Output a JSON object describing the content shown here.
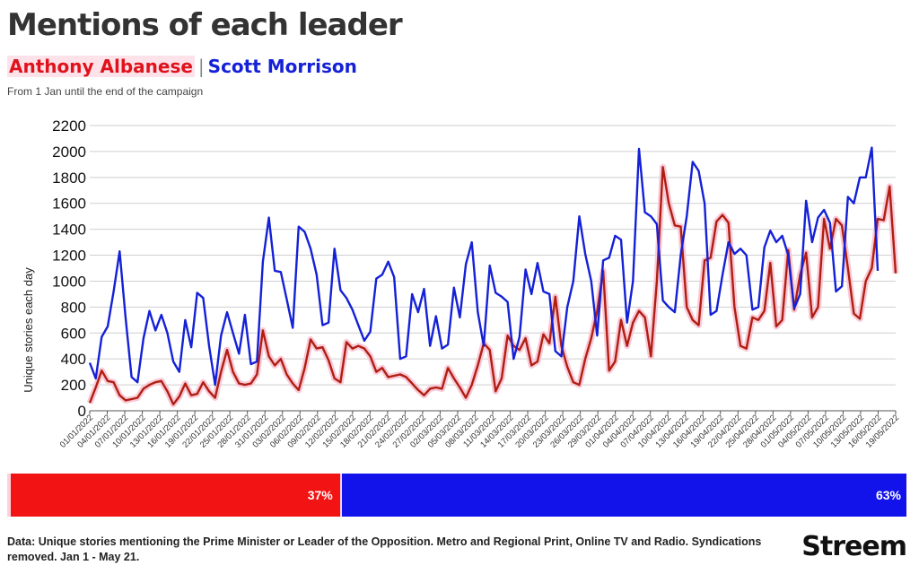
{
  "header": {
    "title": "Mentions of each leader",
    "subtitle": "From 1 Jan until the end of the campaign"
  },
  "legend": {
    "separator": "|"
  },
  "chart_data": {
    "type": "line",
    "ylabel": "Unique stories each day",
    "xlabel": "",
    "ylim": [
      0,
      2200
    ],
    "yticks": [
      0,
      200,
      400,
      600,
      800,
      1000,
      1200,
      1400,
      1600,
      1800,
      2000,
      2200
    ],
    "grid": true,
    "x_tick_labels": [
      "01/01/2022",
      "04/01/2022",
      "07/01/2022",
      "10/01/2022",
      "13/01/2022",
      "16/01/2022",
      "19/01/2022",
      "22/01/2022",
      "25/01/2022",
      "28/01/2022",
      "31/01/2022",
      "03/02/2022",
      "06/02/2022",
      "09/02/2022",
      "12/02/2022",
      "15/02/2022",
      "18/02/2022",
      "21/02/2022",
      "24/02/2022",
      "27/02/2022",
      "02/03/2022",
      "05/03/2022",
      "08/03/2022",
      "11/03/2022",
      "14/03/2022",
      "17/03/2022",
      "20/03/2022",
      "23/03/2022",
      "26/03/2022",
      "29/03/2022",
      "01/04/2022",
      "04/04/2022",
      "07/04/2022",
      "10/04/2022",
      "13/04/2022",
      "16/04/2022",
      "19/04/2022",
      "22/04/2022",
      "25/04/2022",
      "28/04/2022",
      "01/05/2022",
      "04/05/2022",
      "07/05/2022",
      "10/05/2022",
      "13/05/2022",
      "16/05/2022",
      "19/05/2022"
    ],
    "series": [
      {
        "name": "Anthony Albanese",
        "color": "#b01e12",
        "values": [
          60,
          180,
          310,
          230,
          220,
          120,
          80,
          90,
          100,
          170,
          200,
          220,
          230,
          150,
          50,
          110,
          210,
          120,
          130,
          220,
          150,
          100,
          300,
          470,
          300,
          210,
          200,
          210,
          280,
          620,
          420,
          350,
          400,
          280,
          210,
          160,
          330,
          550,
          480,
          490,
          390,
          250,
          220,
          530,
          480,
          500,
          480,
          420,
          300,
          330,
          260,
          270,
          280,
          260,
          210,
          160,
          120,
          170,
          180,
          170,
          330,
          250,
          180,
          100,
          200,
          350,
          520,
          470,
          150,
          250,
          580,
          500,
          470,
          560,
          350,
          380,
          590,
          520,
          880,
          500,
          340,
          220,
          200,
          400,
          560,
          770,
          1080,
          310,
          380,
          700,
          500,
          680,
          770,
          720,
          420,
          1000,
          1880,
          1600,
          1430,
          1420,
          800,
          700,
          660,
          1160,
          1180,
          1460,
          1510,
          1450,
          800,
          500,
          480,
          720,
          700,
          770,
          1140,
          650,
          700,
          1240,
          780,
          1050,
          1220,
          720,
          800,
          1480,
          1250,
          1480,
          1430,
          1100,
          750,
          710,
          1000,
          1100,
          1480,
          1470,
          1730,
          1060
        ]
      },
      {
        "name": "Scott Morrison",
        "color": "#1421d6",
        "values": [
          370,
          250,
          570,
          650,
          920,
          1230,
          720,
          260,
          220,
          560,
          770,
          620,
          740,
          600,
          380,
          300,
          700,
          490,
          910,
          870,
          500,
          200,
          580,
          760,
          600,
          440,
          740,
          360,
          380,
          1150,
          1490,
          1080,
          1070,
          860,
          640,
          1420,
          1380,
          1250,
          1050,
          660,
          680,
          1250,
          930,
          870,
          780,
          660,
          540,
          610,
          1020,
          1050,
          1150,
          1030,
          400,
          420,
          900,
          760,
          940,
          500,
          730,
          480,
          510,
          950,
          720,
          1130,
          1300,
          760,
          500,
          1120,
          910,
          880,
          840,
          400,
          570,
          1090,
          900,
          1140,
          920,
          900,
          460,
          420,
          800,
          1000,
          1500,
          1210,
          1000,
          580,
          1160,
          1180,
          1350,
          1320,
          680,
          1000,
          2020,
          1530,
          1500,
          1440,
          850,
          800,
          760,
          1200,
          1500,
          1920,
          1850,
          1600,
          740,
          770,
          1050,
          1300,
          1210,
          1250,
          1200,
          780,
          800,
          1260,
          1390,
          1300,
          1350,
          1200,
          790,
          900,
          1620,
          1300,
          1490,
          1550,
          1450,
          920,
          960,
          1650,
          1600,
          1800,
          1800,
          2030,
          1080
        ]
      }
    ],
    "share_bar": [
      {
        "name": "Anthony Albanese",
        "label": "37%",
        "value": 37,
        "color": "#f21414"
      },
      {
        "name": "Scott Morrison",
        "label": "63%",
        "value": 63,
        "color": "#1212ea"
      }
    ]
  },
  "footer": {
    "note": "Data: Unique stories mentioning the Prime Minister or Leader of the Opposition. Metro and Regional Print, Online TV and Radio. Syndications removed. Jan 1 - May 21.",
    "brand": "Streem"
  }
}
